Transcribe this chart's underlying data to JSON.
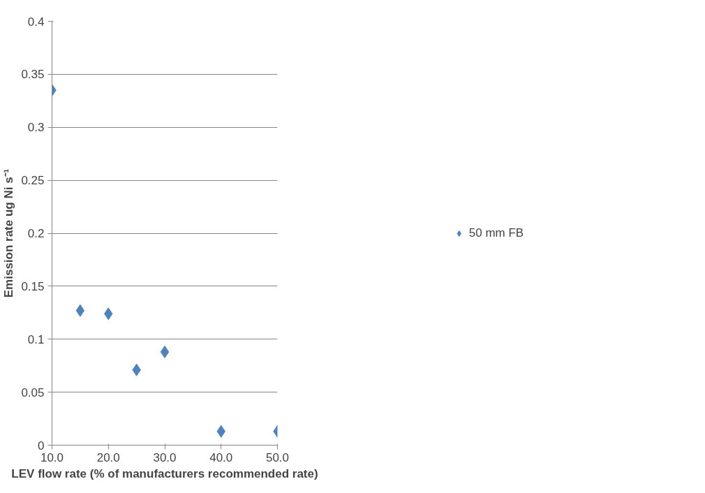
{
  "chart_data": {
    "type": "scatter",
    "xlabel": "LEV flow rate (% of manufacturers recommended rate)",
    "ylabel": "Emission rate ug Ni s⁻¹",
    "x": [
      10,
      15,
      20,
      25,
      30,
      40,
      50
    ],
    "series": [
      {
        "name": "50 mm FB",
        "color": "#4f81bd",
        "values": [
          0.335,
          0.127,
          0.124,
          0.071,
          0.088,
          0.013,
          0.013
        ]
      }
    ],
    "xlim": [
      10,
      50
    ],
    "xticks": [
      {
        "value": 10,
        "label": "10.0"
      },
      {
        "value": 20,
        "label": "20.0"
      },
      {
        "value": 30,
        "label": "30.0"
      },
      {
        "value": 40,
        "label": "40.0"
      },
      {
        "value": 50,
        "label": "50.0"
      }
    ],
    "ylim": [
      0,
      0.4
    ],
    "yticks": [
      0,
      0.05,
      0.1,
      0.15,
      0.2,
      0.25,
      0.3,
      0.35,
      0.4
    ],
    "grid": "y",
    "legend": "right",
    "marker": "diamond"
  }
}
